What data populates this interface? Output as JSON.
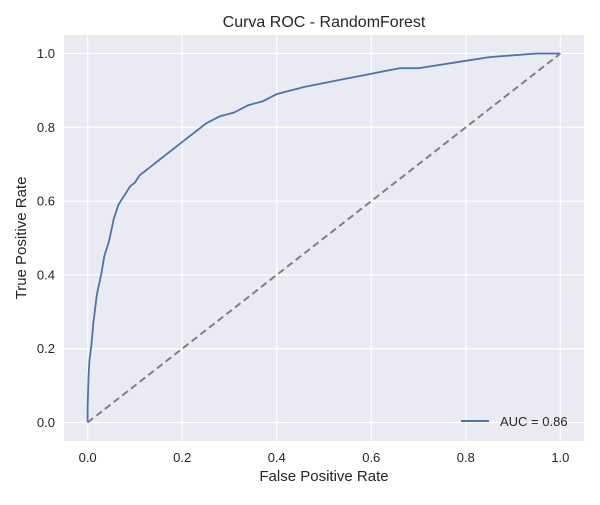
{
  "chart_data": {
    "type": "line",
    "title": "Curva ROC - RandomForest",
    "xlabel": "False Positive Rate",
    "ylabel": "True Positive Rate",
    "xlim": [
      -0.05,
      1.05
    ],
    "ylim": [
      -0.05,
      1.05
    ],
    "xticks": [
      0.0,
      0.2,
      0.4,
      0.6,
      0.8,
      1.0
    ],
    "yticks": [
      0.0,
      0.2,
      0.4,
      0.6,
      0.8,
      1.0
    ],
    "xtick_labels": [
      "0.0",
      "0.2",
      "0.4",
      "0.6",
      "0.8",
      "1.0"
    ],
    "ytick_labels": [
      "0.0",
      "0.2",
      "0.4",
      "0.6",
      "0.8",
      "1.0"
    ],
    "grid": true,
    "legend_position": "lower-right",
    "series": [
      {
        "name": "AUC = 0.86",
        "color": "#4c72b0",
        "style": "solid",
        "x": [
          0.0,
          0.0,
          0.002,
          0.004,
          0.006,
          0.008,
          0.01,
          0.012,
          0.014,
          0.016,
          0.018,
          0.02,
          0.025,
          0.03,
          0.035,
          0.04,
          0.045,
          0.05,
          0.055,
          0.06,
          0.065,
          0.07,
          0.075,
          0.08,
          0.085,
          0.09,
          0.1,
          0.11,
          0.12,
          0.13,
          0.14,
          0.15,
          0.17,
          0.19,
          0.21,
          0.23,
          0.25,
          0.28,
          0.31,
          0.34,
          0.37,
          0.4,
          0.43,
          0.46,
          0.5,
          0.54,
          0.58,
          0.62,
          0.66,
          0.7,
          0.75,
          0.8,
          0.85,
          0.9,
          0.95,
          1.0
        ],
        "y": [
          0.0,
          0.04,
          0.13,
          0.17,
          0.19,
          0.21,
          0.24,
          0.27,
          0.29,
          0.31,
          0.33,
          0.35,
          0.38,
          0.41,
          0.45,
          0.47,
          0.49,
          0.52,
          0.55,
          0.57,
          0.59,
          0.6,
          0.61,
          0.62,
          0.63,
          0.64,
          0.65,
          0.67,
          0.68,
          0.69,
          0.7,
          0.71,
          0.73,
          0.75,
          0.77,
          0.79,
          0.81,
          0.83,
          0.84,
          0.86,
          0.87,
          0.89,
          0.9,
          0.91,
          0.92,
          0.93,
          0.94,
          0.95,
          0.96,
          0.96,
          0.97,
          0.98,
          0.99,
          0.995,
          1.0,
          1.0
        ]
      },
      {
        "name": "",
        "color": "#808080",
        "style": "dashed",
        "x": [
          0.0,
          1.0
        ],
        "y": [
          0.0,
          1.0
        ]
      }
    ],
    "legend": [
      {
        "label": "AUC = 0.86",
        "color": "#4c72b0"
      }
    ]
  },
  "colors": {
    "plot_background": "#eaeaf2",
    "grid": "#ffffff",
    "text": "#262626"
  }
}
